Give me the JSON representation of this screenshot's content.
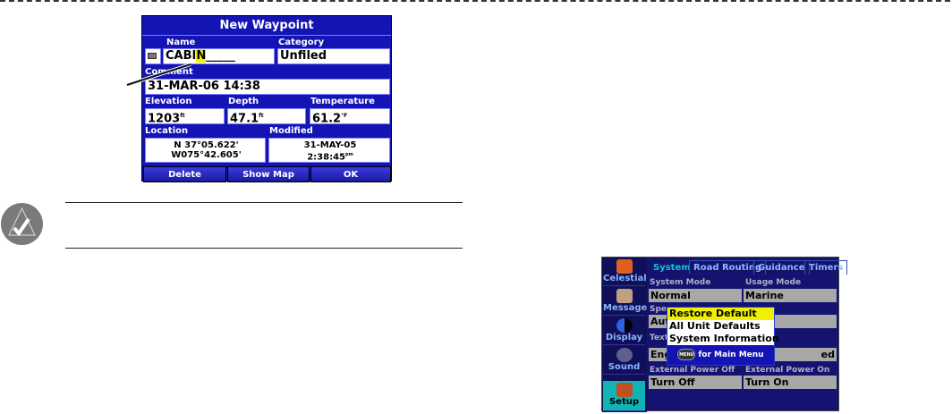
{
  "waypoint_screen": {
    "title": "New Waypoint",
    "name_label": "Name",
    "name_value": "CABI",
    "name_cursor": "N",
    "name_blank": "_____",
    "category_label": "Category",
    "category_value": "Unfiled",
    "comment_label": "Comment",
    "comment_value": "31-MAR-06 14:38",
    "elevation_label": "Elevation",
    "elevation_value": "1203",
    "elevation_unit": "ft",
    "depth_label": "Depth",
    "depth_value": "47.1",
    "depth_unit": "ft",
    "temperature_label": "Temperature",
    "temperature_value": "61.2",
    "temperature_unit": "°F",
    "location_label": "Location",
    "location_lat": "N  37°05.622'",
    "location_lon": "W075°42.605'",
    "modified_label": "Modified",
    "modified_date": "31-MAY-05",
    "modified_time": "2:38:45",
    "modified_suffix": "pm",
    "buttons": {
      "delete": "Delete",
      "show_map": "Show Map",
      "ok": "OK"
    }
  },
  "setup_screen": {
    "sidebar": [
      {
        "label": "Celestial",
        "color": "#e06020"
      },
      {
        "label": "Message",
        "color": "#c0a080"
      },
      {
        "label": "Display",
        "color": "#3060e0"
      },
      {
        "label": "Sound",
        "color": "#606090"
      },
      {
        "label": "Setup",
        "color": "#c05020",
        "selected": true
      }
    ],
    "tabs": [
      "System",
      "Road Routing",
      "Guidance",
      "Timers"
    ],
    "fields": {
      "system_mode_label": "System Mode",
      "system_mode_value": "Normal",
      "usage_mode_label": "Usage Mode",
      "usage_mode_value": "Marine",
      "speed_label_partial": "Spee",
      "speed_value_partial": "Aut",
      "text_label_partial": "Text",
      "text_value_partial": "Eng",
      "text_right_partial": "ed",
      "ext_off_label": "External Power Off",
      "ext_off_value": "Turn Off",
      "ext_on_label": "External Power On",
      "ext_on_value": "Turn On"
    },
    "popup": {
      "items": [
        "Restore Default",
        "All Unit Defaults",
        "System Information"
      ],
      "menu_key": "MENU",
      "footer": "for Main Menu"
    }
  },
  "colors": {
    "screen_blue": "#1414b4",
    "highlight": "#f0f000",
    "selected_tab": "#10b4b4"
  }
}
